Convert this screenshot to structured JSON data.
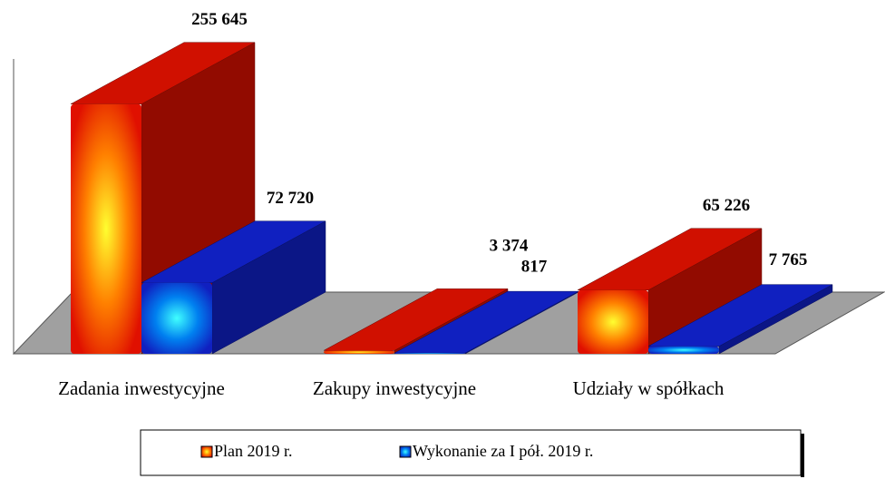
{
  "chart_data": {
    "type": "bar3d",
    "categories": [
      "Zadania inwestycyjne",
      "Zakupy inwestycyjne",
      "Udziały w spółkach"
    ],
    "series": [
      {
        "name": "Plan 2019 r.",
        "color": "#d01000",
        "values": [
          255645,
          3374,
          65226
        ],
        "value_labels": [
          "255 645",
          "3 374",
          "65 226"
        ]
      },
      {
        "name": "Wykonanie za I pół. 2019 r.",
        "color": "#1020c0",
        "values": [
          72720,
          817,
          7765
        ],
        "value_labels": [
          "72 720",
          "817",
          "7 765"
        ]
      }
    ],
    "ylim": [
      0,
      260000
    ]
  }
}
